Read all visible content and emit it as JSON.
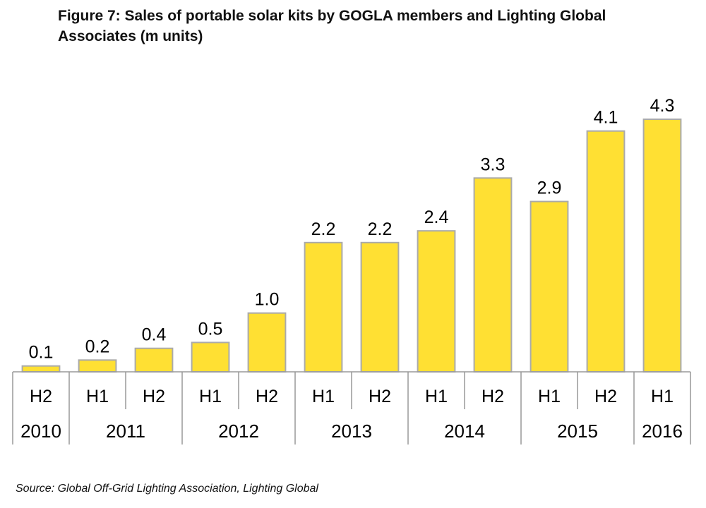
{
  "chart_data": {
    "type": "bar",
    "title": "Figure 7: Sales of portable solar kits by GOGLA members and Lighting Global Associates (m units)",
    "categories": [
      "H2",
      "H1",
      "H2",
      "H1",
      "H2",
      "H1",
      "H2",
      "H1",
      "H2",
      "H1",
      "H2",
      "H1"
    ],
    "years": [
      {
        "label": "2010",
        "span": 1
      },
      {
        "label": "2011",
        "span": 2
      },
      {
        "label": "2012",
        "span": 2
      },
      {
        "label": "2013",
        "span": 2
      },
      {
        "label": "2014",
        "span": 2
      },
      {
        "label": "2015",
        "span": 2
      },
      {
        "label": "2016",
        "span": 1
      }
    ],
    "values": [
      0.1,
      0.2,
      0.4,
      0.5,
      1.0,
      2.2,
      2.2,
      2.4,
      3.3,
      2.9,
      4.1,
      4.3
    ],
    "value_labels": [
      "0.1",
      "0.2",
      "0.4",
      "0.5",
      "1.0",
      "2.2",
      "2.2",
      "2.4",
      "3.3",
      "2.9",
      "4.1",
      "4.3"
    ],
    "ylim": [
      0,
      4.3
    ],
    "grid": false,
    "legend": "none",
    "colors": {
      "bar": "#FFE033",
      "bar_border": "#AAAAAA",
      "axis": "#999999"
    }
  },
  "source": "Source: Global Off-Grid Lighting Association, Lighting Global"
}
